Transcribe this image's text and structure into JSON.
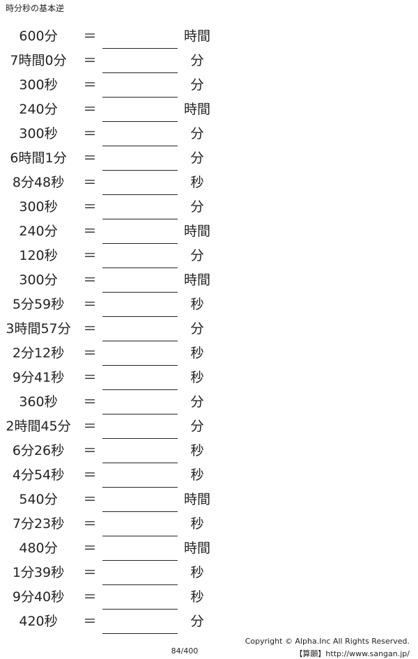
{
  "header": {
    "title": "時分秒の基本逆"
  },
  "problems": [
    {
      "left": "600分",
      "equals": "＝",
      "unit": "時間"
    },
    {
      "left": "7時間0分",
      "equals": "＝",
      "unit": "分"
    },
    {
      "left": "300秒",
      "equals": "＝",
      "unit": "分"
    },
    {
      "left": "240分",
      "equals": "＝",
      "unit": "時間"
    },
    {
      "left": "300秒",
      "equals": "＝",
      "unit": "分"
    },
    {
      "left": "6時間1分",
      "equals": "＝",
      "unit": "分"
    },
    {
      "left": "8分48秒",
      "equals": "＝",
      "unit": "秒"
    },
    {
      "left": "300秒",
      "equals": "＝",
      "unit": "分"
    },
    {
      "left": "240分",
      "equals": "＝",
      "unit": "時間"
    },
    {
      "left": "120秒",
      "equals": "＝",
      "unit": "分"
    },
    {
      "left": "300分",
      "equals": "＝",
      "unit": "時間"
    },
    {
      "left": "5分59秒",
      "equals": "＝",
      "unit": "秒"
    },
    {
      "left": "3時間57分",
      "equals": "＝",
      "unit": "分"
    },
    {
      "left": "2分12秒",
      "equals": "＝",
      "unit": "秒"
    },
    {
      "left": "9分41秒",
      "equals": "＝",
      "unit": "秒"
    },
    {
      "left": "360秒",
      "equals": "＝",
      "unit": "分"
    },
    {
      "left": "2時間45分",
      "equals": "＝",
      "unit": "分"
    },
    {
      "left": "6分26秒",
      "equals": "＝",
      "unit": "秒"
    },
    {
      "left": "4分54秒",
      "equals": "＝",
      "unit": "秒"
    },
    {
      "left": "540分",
      "equals": "＝",
      "unit": "時間"
    },
    {
      "left": "7分23秒",
      "equals": "＝",
      "unit": "秒"
    },
    {
      "left": "480分",
      "equals": "＝",
      "unit": "時間"
    },
    {
      "left": "1分39秒",
      "equals": "＝",
      "unit": "秒"
    },
    {
      "left": "9分40秒",
      "equals": "＝",
      "unit": "秒"
    },
    {
      "left": "420秒",
      "equals": "＝",
      "unit": "分"
    }
  ],
  "footer": {
    "page": "84/400",
    "copyright": "Copyright © Alpha.Inc All Rights Reserved.",
    "site": "【算願】http://www.sangan.jp/"
  }
}
